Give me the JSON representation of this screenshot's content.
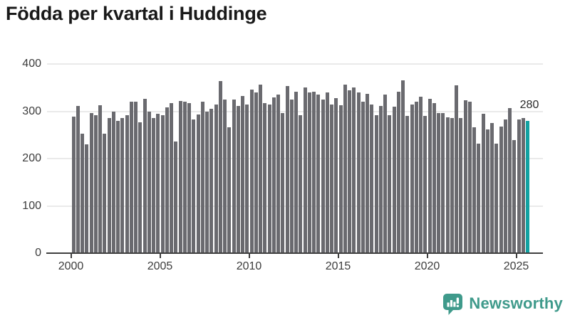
{
  "title": "Födda per kvartal i Huddinge",
  "colors": {
    "bar": "#6a6a6f",
    "highlight": "#12a2a2",
    "grid": "#eaeaea",
    "axis": "#3f3f3f",
    "tick_text": "#3c3c3c",
    "title_text": "#191919",
    "brand_teal": "#3f9a8b"
  },
  "branding": {
    "name": "Newsworthy",
    "icon": "newsworthy-speech-bubble-chart-icon"
  },
  "chart_data": {
    "type": "bar",
    "title": "Födda per kvartal i Huddinge",
    "xlabel": "",
    "ylabel": "",
    "x_start": "2000 Q1",
    "x_end": "2025 Q3",
    "frequency": "quarterly",
    "ylim": [
      0,
      400
    ],
    "grid": "horizontal",
    "legend": "none",
    "y_ticks": [
      0,
      100,
      200,
      300,
      400
    ],
    "x_ticks": [
      "2000",
      "2005",
      "2010",
      "2015",
      "2020",
      "2025"
    ],
    "highlight_last": true,
    "last_value_label": "280",
    "series": [
      {
        "name": "Födda per kvartal",
        "values": [
          289,
          312,
          252,
          230,
          296,
          292,
          313,
          252,
          285,
          300,
          279,
          286,
          292,
          321,
          320,
          277,
          327,
          300,
          285,
          295,
          292,
          309,
          318,
          236,
          322,
          320,
          317,
          282,
          294,
          321,
          300,
          305,
          315,
          364,
          325,
          266,
          325,
          312,
          332,
          315,
          346,
          340,
          357,
          317,
          315,
          330,
          335,
          297,
          353,
          325,
          341,
          292,
          350,
          340,
          342,
          335,
          325,
          340,
          315,
          328,
          313,
          357,
          345,
          350,
          340,
          320,
          337,
          315,
          292,
          312,
          335,
          292,
          310,
          342,
          365,
          290,
          315,
          321,
          331,
          290,
          326,
          317,
          296,
          296,
          287,
          285,
          355,
          286,
          324,
          320,
          266,
          231,
          295,
          261,
          275,
          232,
          267,
          282,
          307,
          239,
          283,
          286,
          280
        ]
      }
    ]
  }
}
